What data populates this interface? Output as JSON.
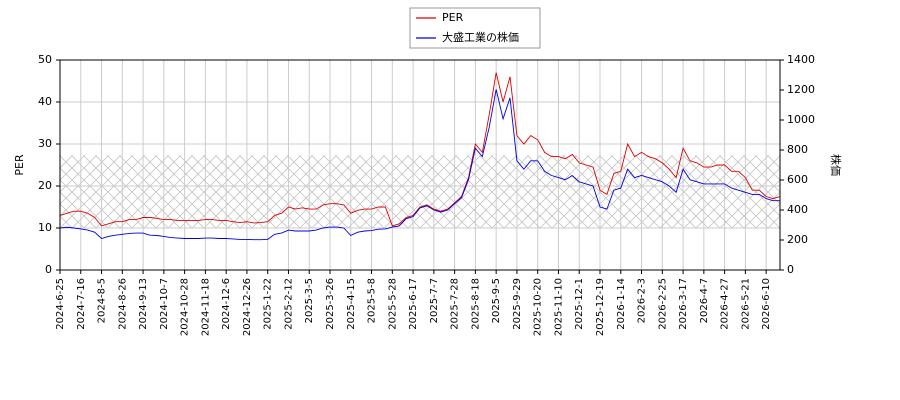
{
  "chart_data": {
    "type": "line",
    "categories": [
      "2024-6-25",
      null,
      null,
      "2024-7-16",
      null,
      null,
      "2024-8-5",
      null,
      null,
      "2024-8-26",
      null,
      null,
      "2024-9-13",
      null,
      null,
      "2024-10-7",
      null,
      null,
      "2024-10-28",
      null,
      null,
      "2024-11-18",
      null,
      null,
      "2024-12-6",
      null,
      null,
      "2024-12-26",
      null,
      null,
      "2025-1-22",
      null,
      null,
      "2025-2-12",
      null,
      null,
      "2025-3-5",
      null,
      null,
      "2025-3-26",
      null,
      null,
      "2025-4-15",
      null,
      null,
      "2025-5-8",
      null,
      null,
      "2025-5-28",
      null,
      null,
      "2025-6-17",
      null,
      null,
      "2025-7-7",
      null,
      null,
      "2025-7-28",
      null,
      null,
      "2025-8-18",
      null,
      null,
      "2025-9-5",
      null,
      null,
      "2025-9-29",
      null,
      null,
      "2025-10-20",
      null,
      null,
      "2025-11-10",
      null,
      null,
      "2025-12-1",
      null,
      null,
      "2025-12-19",
      null,
      null,
      "2026-1-14",
      null,
      null,
      "2026-2-3",
      null,
      null,
      "2026-2-25",
      null,
      null,
      "2026-3-17",
      null,
      null,
      "2026-4-7",
      null,
      null,
      "2026-4-27",
      null,
      null,
      "2026-5-21",
      null,
      null,
      "2026-6-10",
      null,
      null
    ],
    "series": [
      {
        "name": "PER",
        "color": "#dd0000",
        "axis": "y",
        "values": [
          13,
          13.5,
          14,
          14,
          13.5,
          12.5,
          10.5,
          11,
          11.5,
          11.5,
          12,
          12,
          12.5,
          12.5,
          12.3,
          12,
          12,
          11.8,
          11.8,
          11.8,
          11.8,
          12,
          12,
          11.8,
          11.8,
          11.5,
          11.3,
          11.5,
          11.2,
          11.3,
          11.5,
          13,
          13.5,
          15,
          14.5,
          14.8,
          14.5,
          14.5,
          15.5,
          15.8,
          15.8,
          15.5,
          13.5,
          14.2,
          14.5,
          14.5,
          15,
          15,
          10.5,
          11,
          12.5,
          13,
          15,
          15.5,
          14.5,
          14,
          14.5,
          16,
          17.5,
          22,
          30,
          28,
          37,
          47,
          40,
          46,
          32,
          30,
          32,
          31,
          28,
          27,
          27,
          26.5,
          27.5,
          25.5,
          25,
          24.5,
          19,
          18,
          23,
          23.5,
          30,
          27,
          28,
          27,
          26.5,
          25.5,
          24,
          22,
          29,
          26,
          25.5,
          24.5,
          24.5,
          25,
          25,
          23.5,
          23.5,
          22,
          19,
          19,
          17.5,
          17,
          17.5
        ]
      },
      {
        "name": "大盛工業の株価",
        "color": "#0000dd",
        "axis": "y2",
        "values": [
          280,
          285,
          280,
          274,
          266,
          252,
          210,
          224,
          232,
          238,
          244,
          246,
          246,
          232,
          230,
          224,
          216,
          213,
          210,
          210,
          210,
          213,
          213,
          210,
          210,
          207,
          204,
          204,
          202,
          202,
          204,
          238,
          246,
          266,
          260,
          260,
          260,
          266,
          280,
          286,
          286,
          280,
          230,
          252,
          260,
          263,
          272,
          274,
          286,
          294,
          342,
          356,
          414,
          428,
          400,
          386,
          400,
          442,
          482,
          602,
          812,
          756,
          952,
          1204,
          1008,
          1148,
          728,
          672,
          728,
          728,
          658,
          630,
          616,
          602,
          630,
          588,
          574,
          560,
          420,
          406,
          532,
          546,
          672,
          616,
          630,
          616,
          602,
          588,
          560,
          518,
          672,
          602,
          588,
          574,
          574,
          574,
          574,
          546,
          532,
          518,
          504,
          504,
          476,
          462,
          462
        ]
      }
    ],
    "ylabel": "PER",
    "y2label": "株価",
    "ylim": [
      0,
      50
    ],
    "yticks": [
      0,
      10,
      20,
      30,
      40,
      50
    ],
    "y2lim": [
      0,
      1400
    ],
    "y2ticks": [
      0,
      200,
      400,
      600,
      800,
      1000,
      1200,
      1400
    ],
    "shaded_range": [
      10,
      27.3
    ],
    "grid": true,
    "legend": "top"
  }
}
